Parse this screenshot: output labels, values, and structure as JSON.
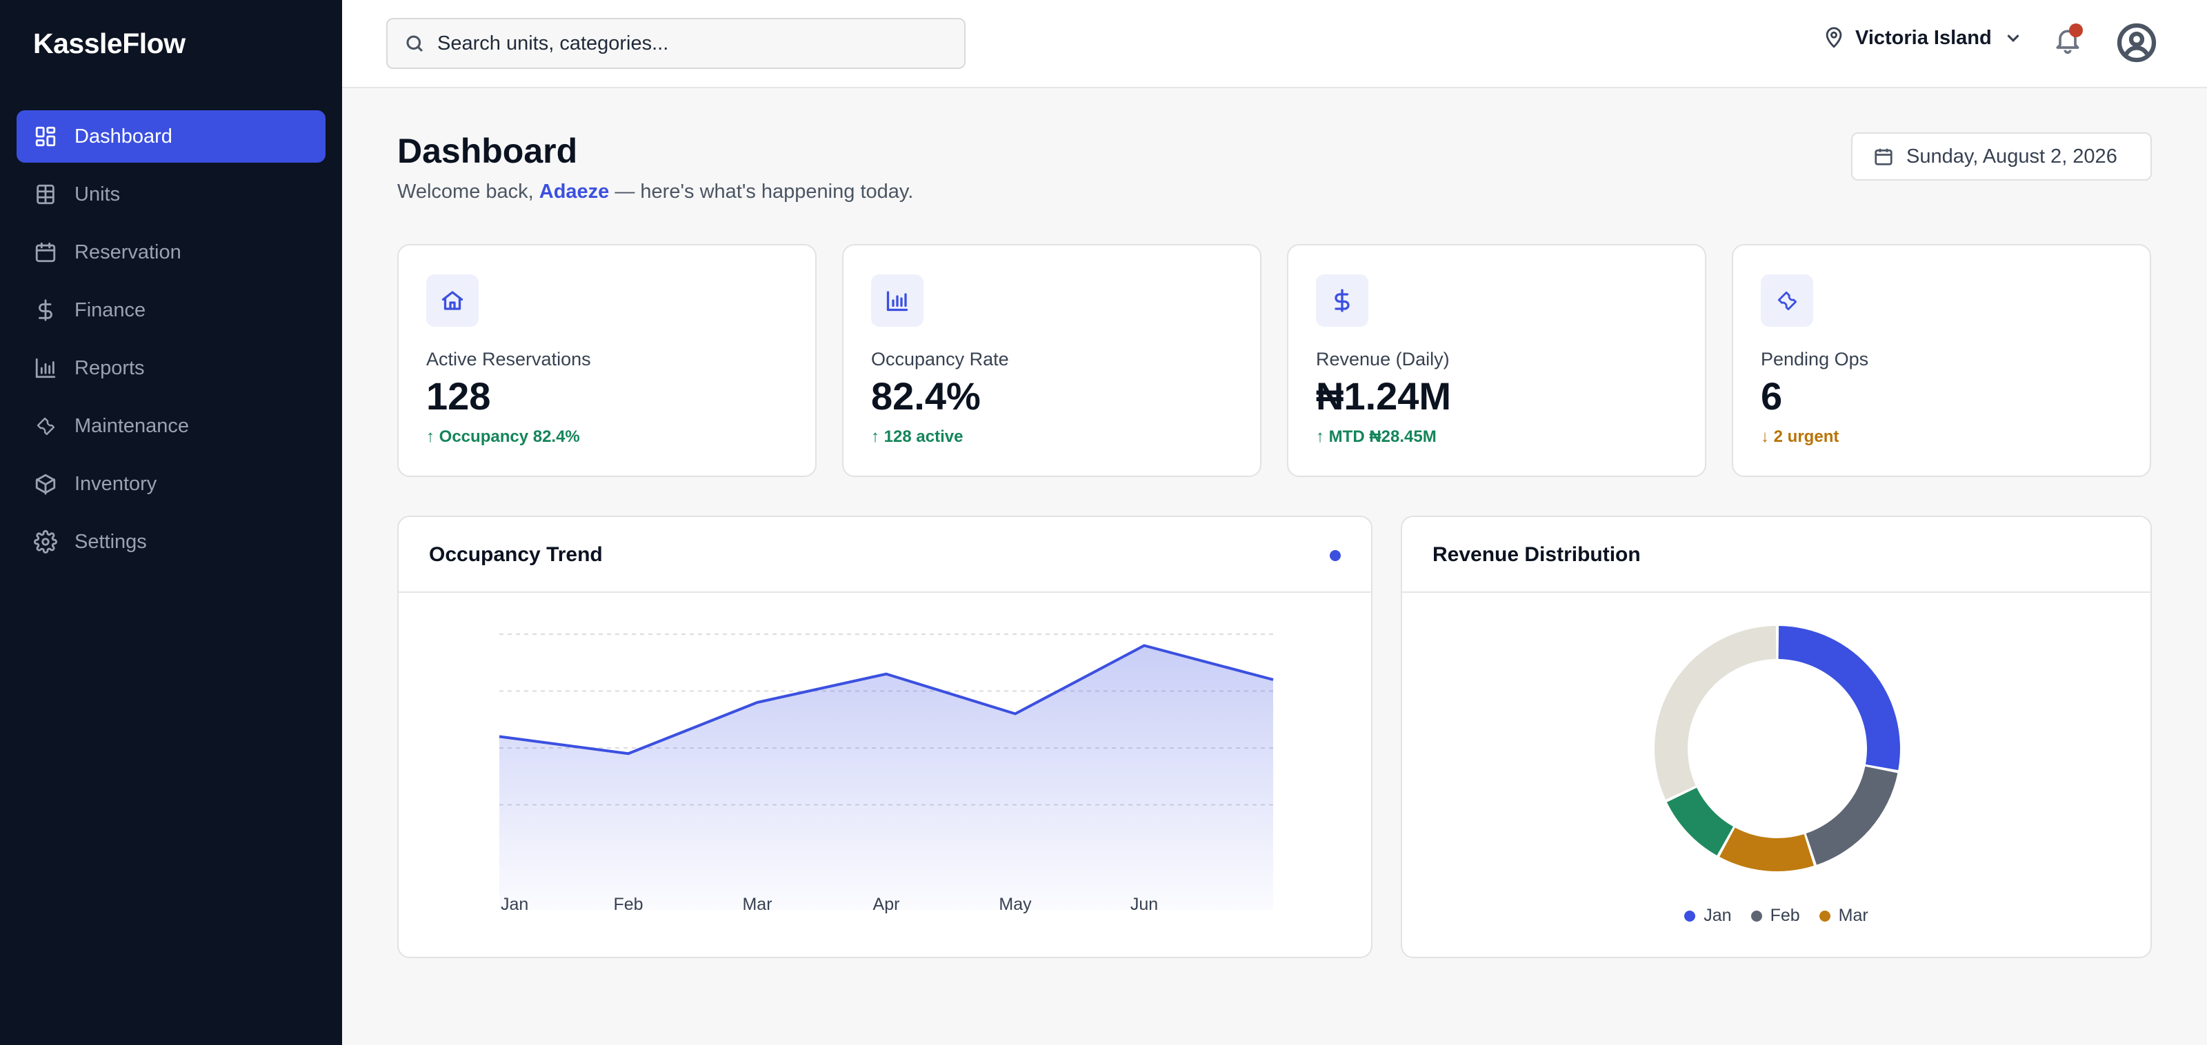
{
  "app": {
    "name": "KassleFlow"
  },
  "sidebar": {
    "items": [
      {
        "label": "Dashboard",
        "icon": "dashboard-icon",
        "active": true
      },
      {
        "label": "Units",
        "icon": "table-icon",
        "active": false
      },
      {
        "label": "Reservation",
        "icon": "calendar-icon",
        "active": false
      },
      {
        "label": "Finance",
        "icon": "dollar-icon",
        "active": false
      },
      {
        "label": "Reports",
        "icon": "bar-chart-icon",
        "active": false
      },
      {
        "label": "Maintenance",
        "icon": "wrench-icon",
        "active": false
      },
      {
        "label": "Inventory",
        "icon": "box-icon",
        "active": false
      },
      {
        "label": "Settings",
        "icon": "gear-icon",
        "active": false
      }
    ]
  },
  "topbar": {
    "search_placeholder": "Search units, categories...",
    "location": "Victoria Island",
    "has_notification": true
  },
  "header": {
    "title": "Dashboard",
    "welcome_prefix": "Welcome back, ",
    "user_name": "Adaeze",
    "welcome_suffix": " — here's what's happening today.",
    "date": "Sunday, August 2, 2026"
  },
  "kpis": [
    {
      "label": "Active Reservations",
      "value": "128",
      "delta": "↑ Occupancy 82.4%",
      "icon": "home-icon",
      "trend": "up"
    },
    {
      "label": "Occupancy Rate",
      "value": "82.4%",
      "delta": "↑ 128 active",
      "icon": "bar-chart-icon",
      "trend": "up"
    },
    {
      "label": "Revenue (Daily)",
      "value": "₦1.24M",
      "delta": "↑ MTD ₦28.45M",
      "icon": "dollar-icon",
      "trend": "up"
    },
    {
      "label": "Pending Ops",
      "value": "6",
      "delta": "↓ 2 urgent",
      "icon": "wrench-icon",
      "trend": "down"
    }
  ],
  "colors": {
    "accent": "#3b50e0",
    "sidebar_bg": "#0c1322",
    "positive": "#14855a",
    "warning": "#b87306",
    "alert": "#c2412d"
  },
  "chart_data": [
    {
      "type": "area",
      "title": "Occupancy Trend",
      "categories": [
        "Jan",
        "Feb",
        "Mar",
        "Apr",
        "May",
        "Jun",
        ""
      ],
      "series": [
        {
          "values": [
            62,
            59,
            68,
            73,
            66,
            78,
            72
          ],
          "color": "#3b50e0"
        }
      ],
      "ylim": [
        40,
        80
      ],
      "grid": true
    },
    {
      "type": "pie",
      "title": "Revenue Distribution",
      "donut": true,
      "slices": [
        {
          "label": "Jan",
          "value": 28,
          "color": "#3b50e0"
        },
        {
          "label": "Feb",
          "value": 17,
          "color": "#5f6673"
        },
        {
          "label": "Mar",
          "value": 13,
          "color": "#bf7b10"
        },
        {
          "label": "",
          "value": 10,
          "color": "#1f8a5f"
        },
        {
          "label": "",
          "value": 32,
          "color": "#e3e0d8"
        }
      ],
      "legend": "bottom"
    }
  ]
}
